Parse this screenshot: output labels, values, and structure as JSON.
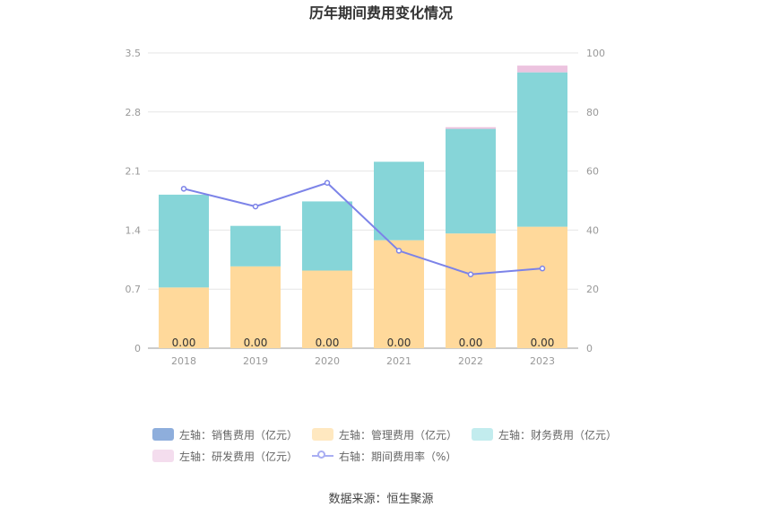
{
  "chart_data": {
    "type": "bar",
    "title": "历年期间费用变化情况",
    "categories": [
      "2018",
      "2019",
      "2020",
      "2021",
      "2022",
      "2023"
    ],
    "left_axis": {
      "ylim": [
        0,
        3.5
      ],
      "ticks": [
        "0",
        "0.7",
        "1.4",
        "2.1",
        "2.8",
        "3.5"
      ]
    },
    "right_axis": {
      "ylim": [
        0,
        100
      ],
      "ticks": [
        "0",
        "20",
        "40",
        "60",
        "80",
        "100"
      ]
    },
    "grid": true,
    "legend_position": "bottom",
    "series": [
      {
        "name": "左轴：销售费用（亿元）",
        "type": "bar",
        "axis": "left",
        "color": "#8eaedc",
        "values": [
          0.0,
          0.0,
          0.0,
          0.0,
          0.0,
          0.0
        ]
      },
      {
        "name": "左轴：管理费用（亿元）",
        "type": "bar",
        "axis": "left",
        "color": "#ffd99b",
        "values": [
          0.72,
          0.97,
          0.92,
          1.28,
          1.36,
          1.44
        ]
      },
      {
        "name": "左轴：财务费用（亿元）",
        "type": "bar",
        "axis": "left",
        "color": "#86d5d8",
        "values": [
          1.1,
          0.48,
          0.82,
          0.93,
          1.24,
          1.83
        ]
      },
      {
        "name": "左轴：研发费用（亿元）",
        "type": "bar",
        "axis": "left",
        "color": "#ecc3df",
        "values": [
          0.0,
          0.0,
          0.0,
          0.0,
          0.02,
          0.08
        ]
      },
      {
        "name": "右轴：期间费用率（%）",
        "type": "line",
        "axis": "right",
        "color": "#7c83e8",
        "values": [
          54,
          48,
          56,
          33,
          25,
          27
        ]
      }
    ],
    "data_labels": [
      "0.00",
      "0.00",
      "0.00",
      "0.00",
      "0.00",
      "0.00"
    ]
  },
  "legend": {
    "items": [
      {
        "label": "左轴：销售费用（亿元）",
        "color": "#8eaedc"
      },
      {
        "label": "左轴：管理费用（亿元）",
        "color": "#ffe8c0"
      },
      {
        "label": "左轴：财务费用（亿元）",
        "color": "#c2ecee"
      },
      {
        "label": "左轴：研发费用（亿元）",
        "color": "#f4ddee"
      },
      {
        "label": "右轴：期间费用率（%）",
        "color": "#a9aef2"
      }
    ]
  },
  "source": "数据来源：恒生聚源"
}
